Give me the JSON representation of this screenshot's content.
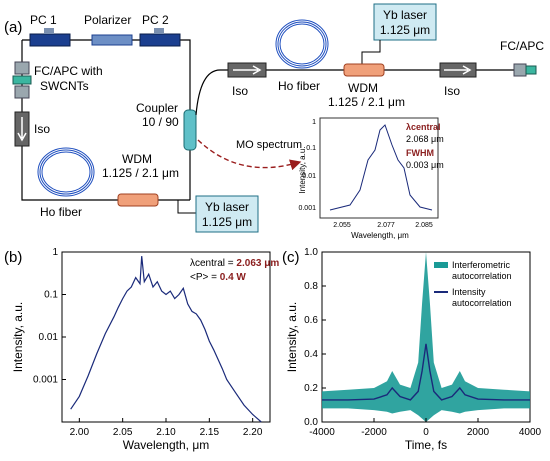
{
  "panel_a": {
    "label": "(a)",
    "pc1": "PC 1",
    "polarizer": "Polarizer",
    "pc2": "PC 2",
    "fcapc_swcnt_line1": "FC/APC with",
    "fcapc_swcnt_line2": "SWCNTs",
    "iso_left": "Iso",
    "ho_fiber_left": "Ho fiber",
    "wdm_left_line1": "WDM",
    "wdm_left_line2": "1.125 / 2.1 μm",
    "yb_left_line1": "Yb laser",
    "yb_left_line2": "1.125 μm",
    "coupler_line1": "Coupler",
    "coupler_line2": "10 / 90",
    "iso_mid": "Iso",
    "ho_fiber_right": "Ho fiber",
    "yb_right_line1": "Yb laser",
    "yb_right_line2": "1.125 μm",
    "wdm_right_line1": "WDM",
    "wdm_right_line2": "1.125 / 2.1 μm",
    "iso_right": "Iso",
    "fcapc_out": "FC/APC",
    "mo_spectrum": "MO spectrum",
    "colors": {
      "laser_box": "#cfeaf2",
      "laser_border": "#1f6f86",
      "wdm": "#f0a07a",
      "coupler": "#5fc0c8",
      "arrow": "#9a1d1d"
    },
    "inset": {
      "ylabel": "Intensity, a.u.",
      "xlabel": "Wavelength, μm",
      "yticks": [
        "1",
        "0.1",
        "0.01",
        "0.001"
      ],
      "xticks": [
        "2.055",
        "2.077",
        "2.085"
      ],
      "lambda_label": "λcentral",
      "lambda_value": "2.068 μm",
      "fwhm_label": "FWHM",
      "fwhm_value": "0.003 μm"
    }
  },
  "panel_b": {
    "label": "(b)",
    "chart_data": {
      "type": "line",
      "xlabel": "Wavelength, μm",
      "ylabel": "Intensity, a.u.",
      "xlim": [
        1.98,
        2.22
      ],
      "ylim": [
        0.0001,
        1
      ],
      "yscale": "log",
      "xticks": [
        "2.00",
        "2.05",
        "2.10",
        "2.15",
        "2.20"
      ],
      "yticks": [
        "1",
        "0.1",
        "0.01",
        "0.001"
      ],
      "series": [
        {
          "color": "#1a2a7a",
          "x": [
            1.99,
            2.0,
            2.01,
            2.02,
            2.03,
            2.04,
            2.045,
            2.05,
            2.055,
            2.06,
            2.065,
            2.07,
            2.072,
            2.075,
            2.08,
            2.085,
            2.09,
            2.095,
            2.1,
            2.105,
            2.11,
            2.115,
            2.12,
            2.125,
            2.13,
            2.135,
            2.14,
            2.145,
            2.15,
            2.155,
            2.16,
            2.165,
            2.17,
            2.18,
            2.19,
            2.2,
            2.21
          ],
          "y": [
            0.0002,
            0.0004,
            0.0012,
            0.004,
            0.012,
            0.03,
            0.05,
            0.08,
            0.12,
            0.15,
            0.25,
            0.18,
            0.8,
            0.2,
            0.3,
            0.15,
            0.2,
            0.12,
            0.1,
            0.12,
            0.08,
            0.1,
            0.14,
            0.06,
            0.04,
            0.035,
            0.025,
            0.015,
            0.008,
            0.005,
            0.003,
            0.0018,
            0.001,
            0.0005,
            0.00025,
            0.00015,
            0.0001
          ]
        }
      ],
      "annotations": [
        {
          "label": "λcentral = ",
          "value": "2.063 μm"
        },
        {
          "label": "<P> = ",
          "value": "0.4 W"
        }
      ]
    }
  },
  "panel_c": {
    "label": "(c)",
    "chart_data": {
      "type": "line",
      "xlabel": "Time, fs",
      "ylabel": "Intensity, a.u.",
      "xlim": [
        -4000,
        4000
      ],
      "ylim": [
        0,
        1.0
      ],
      "xticks": [
        "-4000",
        "-2000",
        "0",
        "2000",
        "4000"
      ],
      "yticks": [
        "0.0",
        "0.2",
        "0.4",
        "0.6",
        "0.8",
        "1.0"
      ],
      "series": [
        {
          "name": "Interferometric autocorrelation",
          "color": "#1a9a96",
          "x": [
            -4000,
            -3000,
            -2000,
            -1500,
            -1300,
            -1000,
            -600,
            -300,
            -150,
            0,
            150,
            300,
            600,
            1000,
            1300,
            1500,
            2000,
            3000,
            4000
          ],
          "upper": [
            0.18,
            0.19,
            0.2,
            0.24,
            0.3,
            0.22,
            0.2,
            0.35,
            0.7,
            1.0,
            0.7,
            0.35,
            0.2,
            0.22,
            0.3,
            0.24,
            0.2,
            0.19,
            0.18
          ],
          "lower": [
            0.08,
            0.08,
            0.07,
            0.06,
            0.05,
            0.06,
            0.07,
            0.04,
            0.02,
            0.0,
            0.02,
            0.04,
            0.07,
            0.06,
            0.05,
            0.06,
            0.07,
            0.08,
            0.08
          ]
        },
        {
          "name": "Intensity autocorrelation",
          "color": "#1a2a7a",
          "x": [
            -4000,
            -3000,
            -2000,
            -1500,
            -1300,
            -1000,
            -600,
            -300,
            -150,
            0,
            150,
            300,
            600,
            1000,
            1300,
            1500,
            2000,
            3000,
            4000
          ],
          "y": [
            0.13,
            0.13,
            0.135,
            0.16,
            0.2,
            0.15,
            0.13,
            0.18,
            0.3,
            0.46,
            0.3,
            0.18,
            0.13,
            0.15,
            0.2,
            0.16,
            0.135,
            0.13,
            0.13
          ]
        }
      ]
    }
  }
}
